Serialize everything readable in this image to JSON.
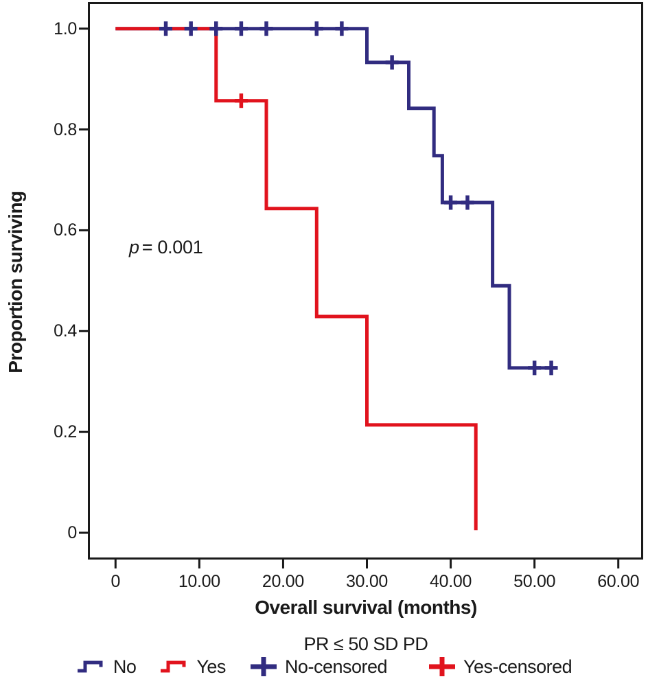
{
  "figure": {
    "x_axis_title": "Overall survival (months)",
    "y_axis_title": "Proportion surviving",
    "annotation": {
      "p_label": "p",
      "p_text": "= 0.001"
    }
  },
  "axes": {
    "x": {
      "labels": [
        "0",
        "10.00",
        "20.00",
        "30.00",
        "40.00",
        "50.00",
        "60.00"
      ],
      "values": [
        0,
        10,
        20,
        30,
        40,
        50,
        60
      ]
    },
    "y": {
      "labels": [
        "1.0",
        "0.8",
        "0.6",
        "0.4",
        "0.2",
        "0"
      ],
      "values": [
        1.0,
        0.8,
        0.6,
        0.4,
        0.2,
        0
      ]
    }
  },
  "legend": {
    "title": "PR ≤ 50 SD PD",
    "items": [
      {
        "label": "No",
        "symbol": "step",
        "color_key": "no"
      },
      {
        "label": "Yes",
        "symbol": "step",
        "color_key": "yes"
      },
      {
        "label": "No-censored",
        "symbol": "plus",
        "color_key": "no"
      },
      {
        "label": "Yes-censored",
        "symbol": "plus",
        "color_key": "yes"
      }
    ]
  },
  "colors": {
    "no": "#312c80",
    "yes": "#e1131d",
    "axis": "#1a1a1a"
  },
  "chart_data": {
    "type": "line",
    "subtype": "kaplan-meier-step",
    "title": "",
    "xlabel": "Overall survival (months)",
    "ylabel": "Proportion surviving",
    "xlim": [
      0,
      60
    ],
    "ylim": [
      0,
      1.0
    ],
    "grid": false,
    "legend_position": "bottom",
    "p_value": 0.001,
    "series": [
      {
        "name": "No",
        "color_key": "no",
        "steps": [
          [
            0,
            1.0
          ],
          [
            30,
            1.0
          ],
          [
            30,
            0.933
          ],
          [
            35,
            0.933
          ],
          [
            35,
            0.842
          ],
          [
            38,
            0.842
          ],
          [
            38,
            0.748
          ],
          [
            39,
            0.748
          ],
          [
            39,
            0.655
          ],
          [
            45,
            0.655
          ],
          [
            45,
            0.49
          ],
          [
            47,
            0.49
          ],
          [
            47,
            0.327
          ],
          [
            52.6,
            0.327
          ]
        ],
        "censored": [
          [
            6,
            1.0
          ],
          [
            9,
            1.0
          ],
          [
            12,
            1.0
          ],
          [
            15,
            1.0
          ],
          [
            18,
            1.0
          ],
          [
            24,
            1.0
          ],
          [
            27,
            1.0
          ],
          [
            33,
            0.933
          ],
          [
            40,
            0.655
          ],
          [
            42,
            0.655
          ],
          [
            50,
            0.327
          ],
          [
            52,
            0.327
          ]
        ]
      },
      {
        "name": "Yes",
        "color_key": "yes",
        "steps": [
          [
            0,
            1.0
          ],
          [
            12,
            1.0
          ],
          [
            12,
            0.857
          ],
          [
            18,
            0.857
          ],
          [
            18,
            0.643
          ],
          [
            24,
            0.643
          ],
          [
            24,
            0.429
          ],
          [
            30,
            0.429
          ],
          [
            30,
            0.214
          ],
          [
            43,
            0.214
          ],
          [
            43,
            0.005
          ]
        ],
        "censored": [
          [
            15,
            0.857
          ]
        ]
      }
    ]
  }
}
